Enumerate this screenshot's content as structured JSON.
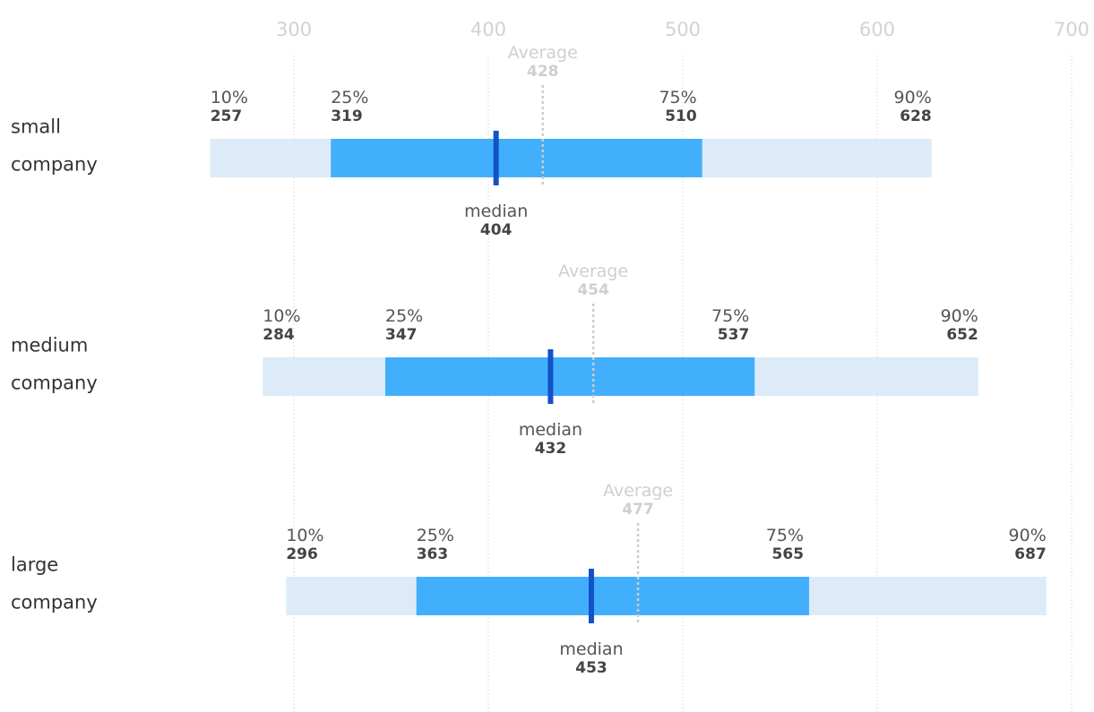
{
  "chart_data": {
    "type": "box-range",
    "x_axis": {
      "ticks": [
        300,
        400,
        500,
        600,
        700
      ],
      "range": [
        257,
        700
      ],
      "grid": true,
      "position": "top"
    },
    "labels": {
      "p10": "10%",
      "p25": "25%",
      "p75": "75%",
      "p90": "90%",
      "median": "median",
      "average": "Average"
    },
    "rows": [
      {
        "label_lines": [
          "small",
          "company"
        ],
        "p10": 257,
        "p25": 319,
        "median": 404,
        "average": 428,
        "p75": 510,
        "p90": 628
      },
      {
        "label_lines": [
          "medium",
          "company"
        ],
        "p10": 284,
        "p25": 347,
        "median": 432,
        "average": 454,
        "p75": 537,
        "p90": 652
      },
      {
        "label_lines": [
          "large",
          "company"
        ],
        "p10": 296,
        "p25": 363,
        "median": 453,
        "average": 477,
        "p75": 565,
        "p90": 687
      }
    ],
    "colors": {
      "outer_range": "#dcebf7",
      "inner_range": "#42affd",
      "median_line": "#1452c8",
      "average_line": "#cccccc",
      "grid": "#c8c8c8",
      "tick_text": "#d2d2d2",
      "row_text": "#333333"
    }
  }
}
